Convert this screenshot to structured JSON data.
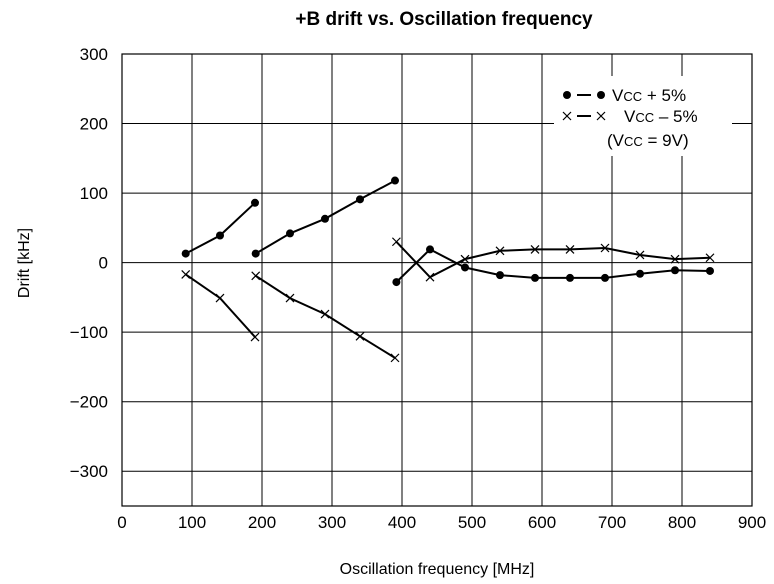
{
  "chart_data": {
    "type": "line",
    "title": "+B drift vs. Oscillation frequency",
    "xlabel": "Oscillation frequency [MHz]",
    "ylabel": "Drift [kHz]",
    "xlim": [
      0,
      900
    ],
    "ylim": [
      -350,
      300
    ],
    "x_ticks": [
      "0",
      "100",
      "200",
      "300",
      "400",
      "500",
      "600",
      "700",
      "800",
      "900"
    ],
    "y_ticks": [
      "300",
      "200",
      "100",
      "0",
      "−100",
      "−200",
      "−300"
    ],
    "grid": true,
    "legend_position": "top-right",
    "legend": [
      {
        "marker": "dot",
        "label_main": "V",
        "label_sub": "CC",
        "label_rest": " + 5%"
      },
      {
        "marker": "cross",
        "label_main": "V",
        "label_sub": "CC",
        "label_rest": " – 5%"
      }
    ],
    "legend_note": {
      "open": "(V",
      "sub": "CC",
      "rest": " = 9V)"
    },
    "series": [
      {
        "marker": "dot",
        "segments": [
          [
            [
              91,
              13
            ],
            [
              140,
              39
            ],
            [
              190,
              86
            ]
          ],
          [
            [
              191,
              13
            ],
            [
              240,
              42
            ],
            [
              290,
              63
            ],
            [
              340,
              91
            ],
            [
              390,
              118
            ]
          ],
          [
            [
              392,
              -28
            ],
            [
              440,
              19
            ],
            [
              490,
              -7
            ],
            [
              540,
              -18
            ],
            [
              590,
              -22
            ],
            [
              640,
              -22
            ],
            [
              690,
              -22
            ],
            [
              740,
              -16
            ],
            [
              790,
              -11
            ],
            [
              840,
              -12
            ]
          ]
        ]
      },
      {
        "marker": "cross",
        "segments": [
          [
            [
              91,
              -17
            ],
            [
              140,
              -51
            ],
            [
              190,
              -107
            ]
          ],
          [
            [
              191,
              -19
            ],
            [
              240,
              -51
            ],
            [
              290,
              -74
            ],
            [
              340,
              -106
            ],
            [
              390,
              -137
            ]
          ],
          [
            [
              392,
              30
            ],
            [
              440,
              -21
            ],
            [
              490,
              5
            ],
            [
              540,
              17
            ],
            [
              590,
              19
            ],
            [
              640,
              19
            ],
            [
              690,
              21
            ],
            [
              740,
              11
            ],
            [
              790,
              5
            ],
            [
              840,
              7
            ]
          ]
        ]
      }
    ]
  }
}
